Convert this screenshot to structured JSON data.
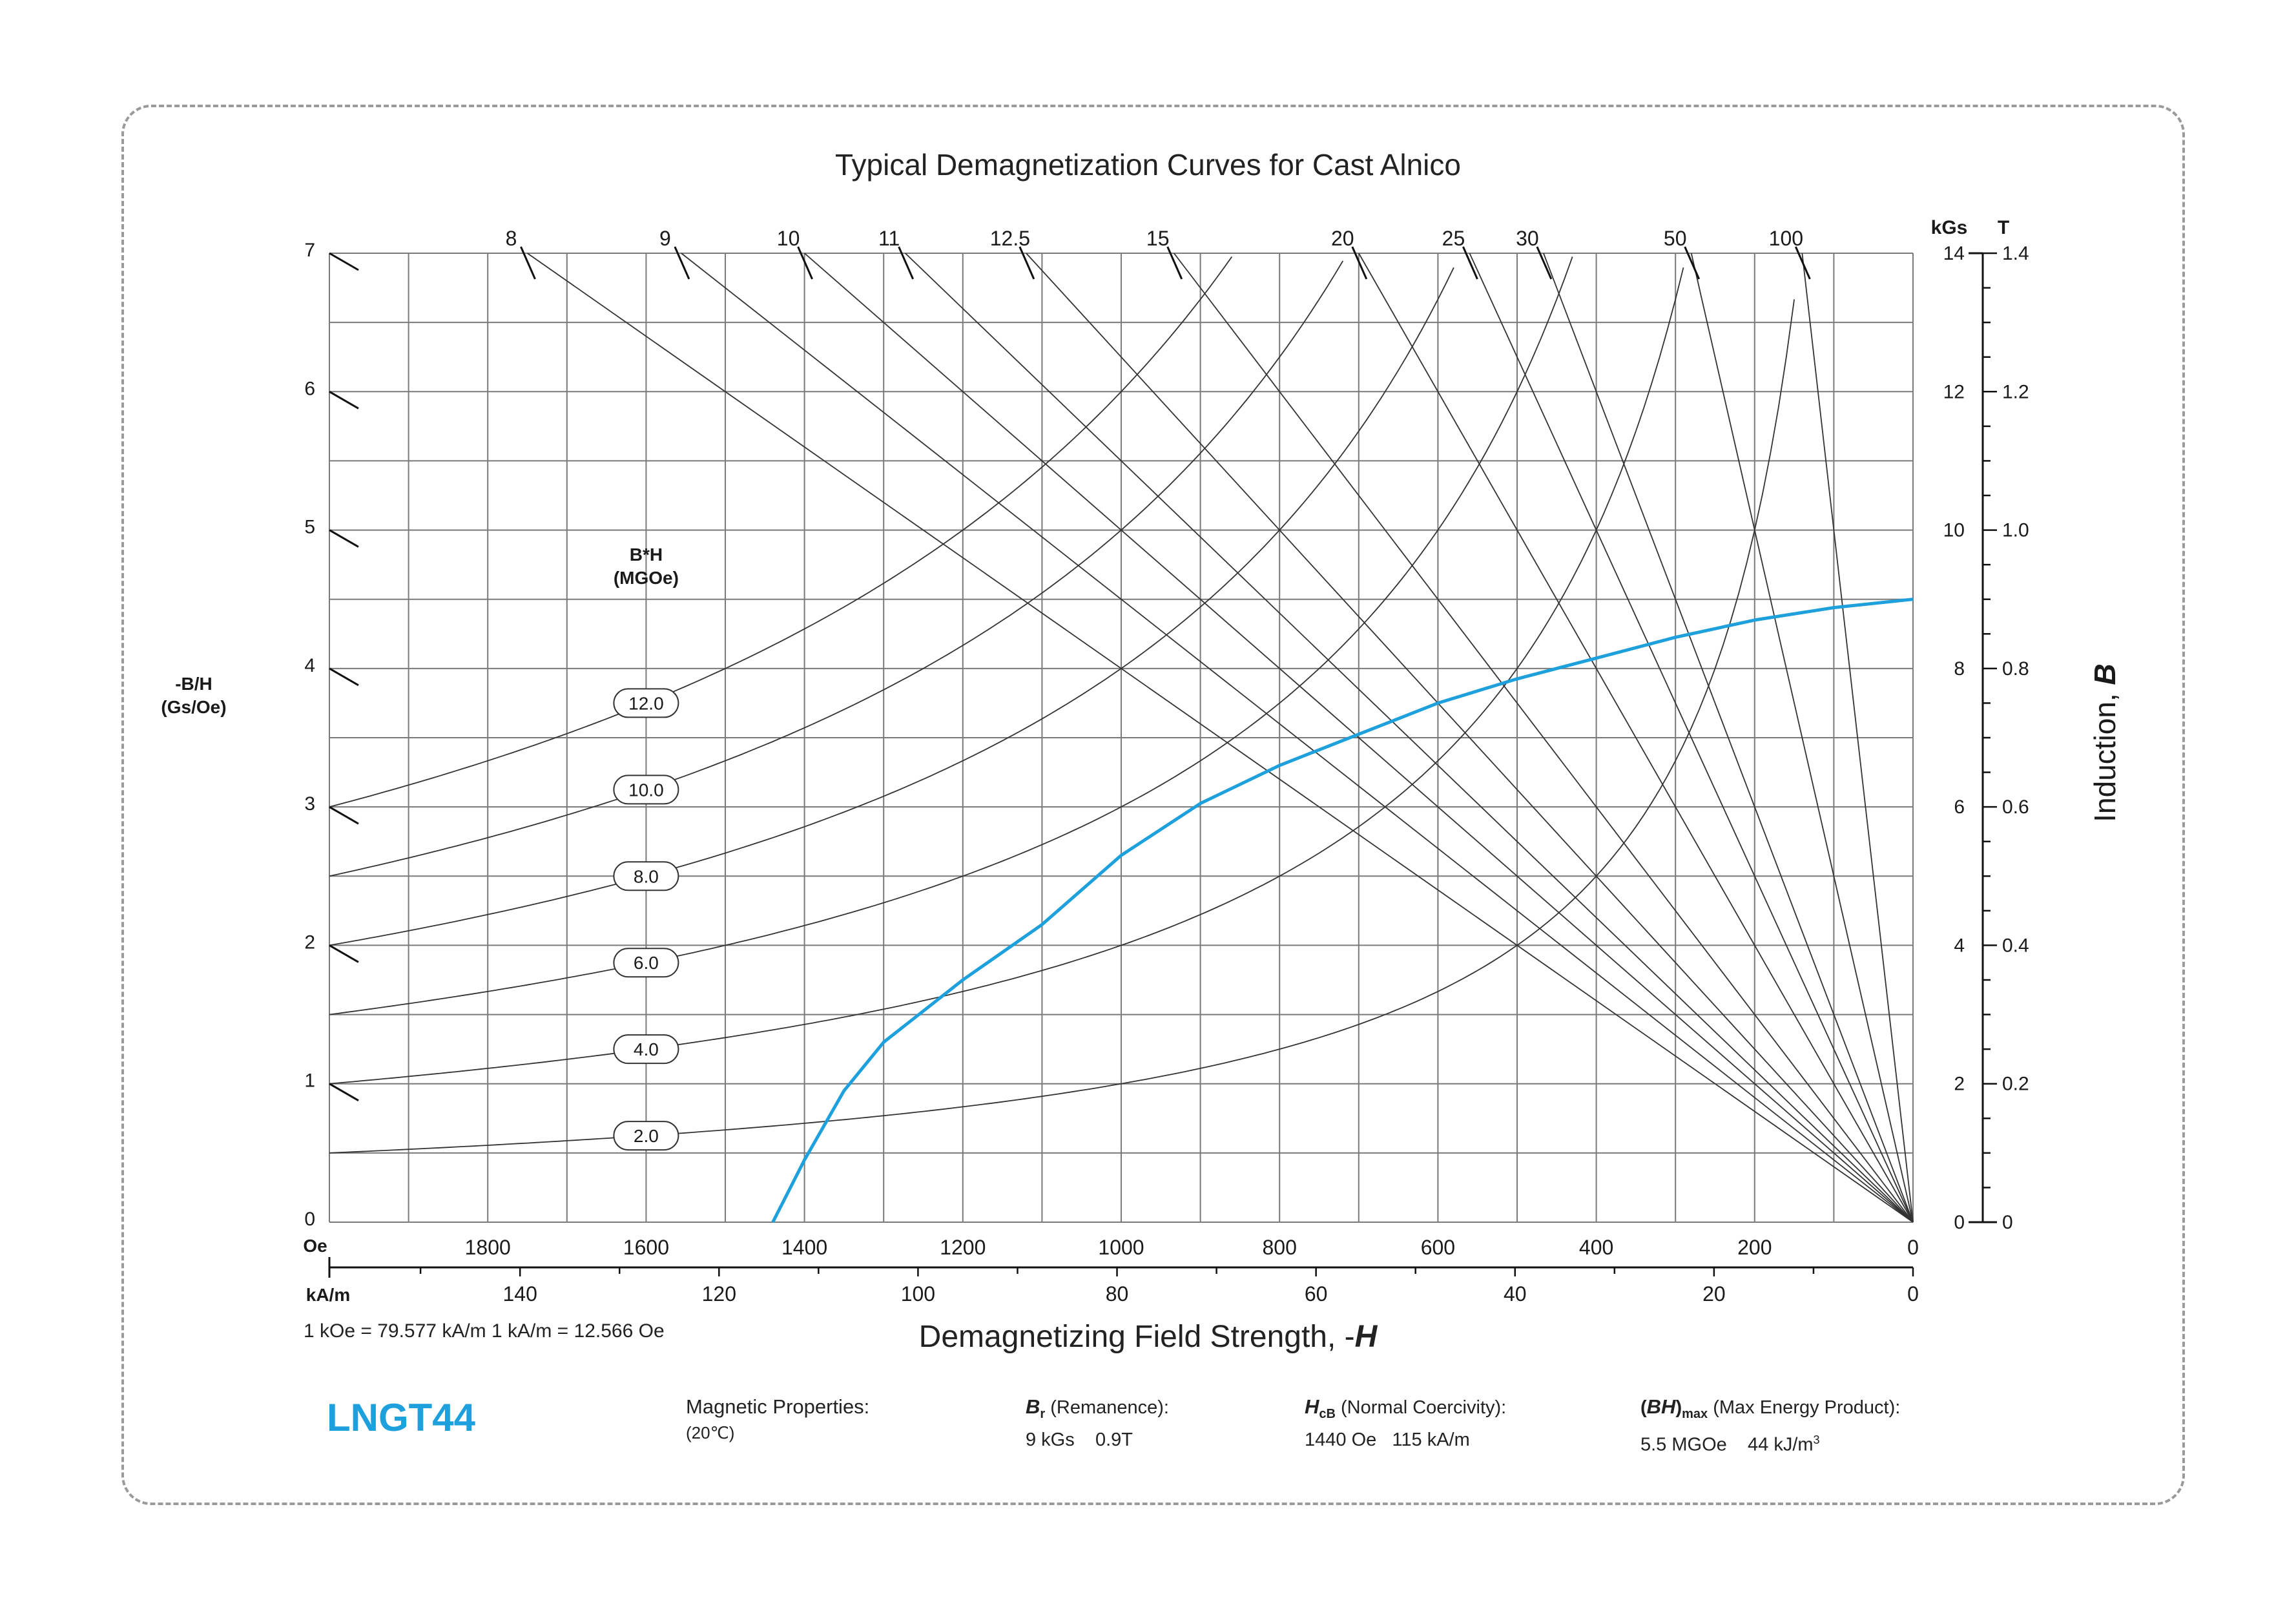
{
  "title": "Typical Demagnetization Curves for Cast Alnico",
  "x_axis": {
    "title_prefix": "Demagnetizing Field Strength, -",
    "title_symbol": "H",
    "oe_unit": "Oe",
    "ka_unit": "kA/m",
    "oe_ticks": [
      "1800",
      "1600",
      "1400",
      "1200",
      "1000",
      "800",
      "600",
      "400",
      "200",
      "0"
    ],
    "ka_ticks": [
      "140",
      "120",
      "100",
      "80",
      "60",
      "40",
      "20",
      "0"
    ],
    "conversion": "1 kOe = 79.577 kA/m   1 kA/m = 12.566 Oe"
  },
  "left_axis": {
    "label_line1": "-B/H",
    "label_line2": "(Gs/Oe)",
    "ticks": [
      "0",
      "1",
      "2",
      "3",
      "4",
      "5",
      "6",
      "7"
    ]
  },
  "right_axis": {
    "title_prefix": "Induction, ",
    "title_symbol": "B",
    "kgs_unit": "kGs",
    "t_unit": "T",
    "kgs_ticks": [
      "0",
      "2",
      "4",
      "6",
      "8",
      "10",
      "12",
      "14"
    ],
    "t_ticks": [
      "0",
      "0.2",
      "0.4",
      "0.6",
      "0.8",
      "1.0",
      "1.2",
      "1.4"
    ]
  },
  "top_slope_labels": [
    "8",
    "9",
    "10",
    "11",
    "12.5",
    "15",
    "20",
    "25",
    "30",
    "50",
    "100"
  ],
  "bh_label": {
    "line1": "B*H",
    "line2": "(MGOe)"
  },
  "bh_curve_labels": [
    "12.0",
    "10.0",
    "8.0",
    "6.0",
    "4.0",
    "2.0"
  ],
  "colors": {
    "curve": "#1ea0dc",
    "grid": "#7a7a7a",
    "grade": "#1ea0dc",
    "text": "#1a1a1a"
  },
  "chart_data": {
    "type": "line",
    "x_axis": {
      "label": "Demagnetizing Field Strength, -H",
      "unit": "Oe",
      "range": [
        2000,
        0
      ],
      "reversed": true
    },
    "y_axis": {
      "label": "Induction, B",
      "unit": "kGs",
      "range": [
        0,
        14
      ]
    },
    "series": [
      {
        "name": "LNGT44",
        "color": "#1ea0dc",
        "points": [
          [
            1440,
            0
          ],
          [
            1400,
            0.9
          ],
          [
            1350,
            1.9
          ],
          [
            1300,
            2.6
          ],
          [
            1200,
            3.5
          ],
          [
            1100,
            4.3
          ],
          [
            1000,
            5.3
          ],
          [
            900,
            6.05
          ],
          [
            800,
            6.6
          ],
          [
            700,
            7.05
          ],
          [
            600,
            7.5
          ],
          [
            500,
            7.85
          ],
          [
            400,
            8.15
          ],
          [
            300,
            8.45
          ],
          [
            200,
            8.7
          ],
          [
            100,
            8.88
          ],
          [
            0,
            9.0
          ]
        ]
      }
    ],
    "energy_product_contours_MGOe": [
      2.0,
      4.0,
      6.0,
      8.0,
      10.0,
      12.0
    ],
    "load_line_slopes": [
      8,
      9,
      10,
      11,
      12.5,
      15,
      20,
      25,
      30,
      50,
      100
    ],
    "grid": true
  },
  "properties": {
    "grade": "LNGT44",
    "heading": "Magnetic Properties:",
    "temperature": "(20℃)",
    "br": {
      "symbol": "B",
      "subscript": "r",
      "desc": " (Remanence):",
      "value": "9 kGs    0.9T"
    },
    "hcb": {
      "symbol": "H",
      "subscript": "cB",
      "desc": " (Normal Coercivity):",
      "value": "1440 Oe   115 kA/m"
    },
    "bhmax": {
      "symbol": "BH",
      "subscript": "max",
      "desc": " (Max Energy Product):",
      "value_main": "5.5 MGOe    44 kJ/m",
      "value_sup": "3"
    }
  }
}
